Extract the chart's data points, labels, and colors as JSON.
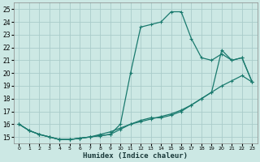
{
  "xlabel": "Humidex (Indice chaleur)",
  "ylabel": "",
  "bg_color": "#cce8e4",
  "grid_color": "#aaccca",
  "line_color": "#1a7a6e",
  "xlim": [
    -0.5,
    23.5
  ],
  "ylim": [
    14.5,
    25.5
  ],
  "xticks": [
    0,
    1,
    2,
    3,
    4,
    5,
    6,
    7,
    8,
    9,
    10,
    11,
    12,
    13,
    14,
    15,
    16,
    17,
    18,
    19,
    20,
    21,
    22,
    23
  ],
  "yticks": [
    15,
    16,
    17,
    18,
    19,
    20,
    21,
    22,
    23,
    24,
    25
  ],
  "line1": {
    "x": [
      0,
      1,
      2,
      3,
      4,
      5,
      6,
      7,
      8,
      9,
      10,
      11,
      12,
      13,
      14,
      15,
      16,
      17,
      18,
      19,
      20,
      21,
      22,
      23
    ],
    "y": [
      16.0,
      15.5,
      15.2,
      15.0,
      14.8,
      14.8,
      14.9,
      15.0,
      15.1,
      15.2,
      16.0,
      20.0,
      23.6,
      23.8,
      24.0,
      24.8,
      24.8,
      22.7,
      21.2,
      21.0,
      21.5,
      21.0,
      21.2,
      19.3
    ]
  },
  "line2": {
    "x": [
      0,
      1,
      2,
      3,
      4,
      5,
      6,
      7,
      8,
      9,
      10,
      11,
      12,
      13,
      14,
      15,
      16,
      17,
      18,
      19,
      20,
      21,
      22,
      23
    ],
    "y": [
      16.0,
      15.5,
      15.2,
      15.0,
      14.8,
      14.8,
      14.9,
      15.0,
      15.1,
      15.2,
      15.6,
      16.0,
      16.3,
      16.5,
      16.5,
      16.7,
      17.0,
      17.5,
      18.0,
      18.5,
      21.8,
      21.0,
      21.2,
      19.3
    ]
  },
  "line3": {
    "x": [
      0,
      1,
      2,
      3,
      4,
      5,
      6,
      7,
      8,
      9,
      10,
      11,
      12,
      13,
      14,
      15,
      16,
      17,
      18,
      19,
      20,
      21,
      22,
      23
    ],
    "y": [
      16.0,
      15.5,
      15.2,
      15.0,
      14.8,
      14.8,
      14.9,
      15.0,
      15.2,
      15.4,
      15.7,
      16.0,
      16.2,
      16.4,
      16.6,
      16.8,
      17.1,
      17.5,
      18.0,
      18.5,
      19.0,
      19.4,
      19.8,
      19.3
    ]
  }
}
